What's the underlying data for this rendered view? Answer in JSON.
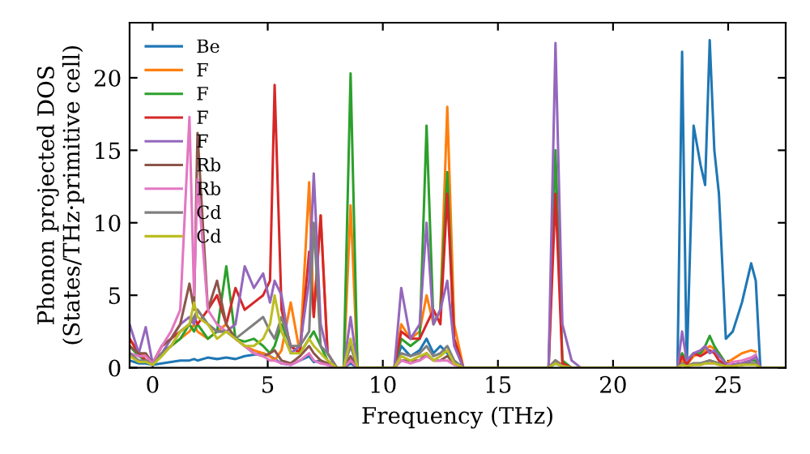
{
  "chart_data": {
    "type": "line",
    "xlabel": "Frequency (THz)",
    "ylabel": "Phonon projected DOS\n(States/THz·primitive cell)",
    "xlim": [
      -1,
      27.5
    ],
    "ylim": [
      0,
      23.8
    ],
    "xticks": [
      0,
      5,
      10,
      15,
      20,
      25
    ],
    "yticks": [
      0,
      5,
      10,
      15,
      20
    ],
    "grid": false,
    "legend": "top left",
    "x": [
      -1,
      -0.6,
      -0.3,
      0,
      0.4,
      0.8,
      1.2,
      1.6,
      1.8,
      1.95,
      2.4,
      2.8,
      3.2,
      3.6,
      4,
      4.4,
      4.8,
      5.1,
      5.3,
      5.6,
      6,
      6.4,
      6.8,
      7,
      7.3,
      7.6,
      8,
      8.3,
      8.6,
      8.9,
      9.5,
      10.5,
      10.8,
      11.2,
      11.6,
      11.9,
      12.2,
      12.5,
      12.8,
      13.1,
      13.5,
      17.2,
      17.5,
      17.8,
      18.2,
      18.6,
      22.8,
      23,
      23.2,
      23.5,
      23.8,
      24,
      24.2,
      24.4,
      24.6,
      24.9,
      25.2,
      25.6,
      26,
      26.2,
      26.4,
      27.5
    ],
    "series": [
      {
        "name": "Be",
        "color": "#1f77b4",
        "values": [
          0.5,
          0.3,
          0.3,
          0.2,
          0.3,
          0.4,
          0.5,
          0.5,
          0.6,
          0.5,
          0.7,
          0.6,
          0.7,
          0.6,
          0.8,
          0.9,
          1.0,
          0.8,
          0.6,
          0.3,
          0.2,
          0.5,
          0.8,
          0.4,
          0.5,
          0.2,
          0,
          0,
          0.3,
          0,
          0,
          0,
          1.5,
          0.8,
          1.2,
          2,
          1,
          1.5,
          1,
          0.3,
          0,
          0,
          0.3,
          0.1,
          0,
          0,
          0,
          21.8,
          0,
          16.7,
          14,
          12.6,
          22.6,
          15,
          12,
          2,
          2.5,
          4.5,
          7.2,
          6,
          0,
          0
        ]
      },
      {
        "name": "F",
        "color": "#ff7f0e",
        "values": [
          2,
          1,
          0.8,
          0.3,
          1,
          1.5,
          2,
          2.5,
          3,
          2.5,
          2,
          2.5,
          3,
          2,
          1.5,
          1.2,
          1,
          0.8,
          0.5,
          1.2,
          4.5,
          1,
          12.8,
          3.5,
          10.5,
          1,
          0,
          0,
          11.2,
          0,
          0,
          0,
          3,
          2,
          2.5,
          5,
          3,
          4,
          18,
          3,
          0,
          0,
          0.5,
          0.2,
          0,
          0,
          0,
          0.5,
          0.2,
          0.8,
          1,
          1.2,
          1.5,
          1.3,
          1,
          0.3,
          0.6,
          1.0,
          1.2,
          1.1,
          null,
          null
        ]
      },
      {
        "name": "F",
        "color": "#2ca02c",
        "values": [
          1.5,
          0.8,
          0.5,
          0.3,
          1,
          1.5,
          2,
          3,
          2.5,
          3,
          2,
          2.5,
          7,
          2,
          1.8,
          2,
          1.5,
          1,
          1.5,
          3,
          1.5,
          1,
          2,
          2.5,
          1.5,
          0.5,
          0,
          0,
          20.3,
          0,
          0,
          0,
          2,
          1.5,
          2,
          16.7,
          3,
          4,
          13.5,
          1.6,
          0,
          0,
          15,
          0.5,
          0,
          0,
          0,
          1,
          0.5,
          1,
          1,
          1.5,
          2.2,
          1.5,
          1,
          0.3,
          0.2,
          0.3,
          0.5,
          0.5,
          0,
          0
        ]
      },
      {
        "name": "F",
        "color": "#d62728",
        "values": [
          2,
          1,
          0.5,
          0.3,
          1.5,
          2,
          2.5,
          3,
          3.5,
          3,
          4,
          5,
          3,
          5.5,
          4,
          4.5,
          5,
          6,
          19.5,
          4,
          1.5,
          1,
          8,
          3.5,
          10.5,
          1,
          0,
          0,
          0.5,
          0,
          0,
          0,
          2.5,
          2,
          2,
          3,
          4,
          3,
          12,
          2,
          0,
          0,
          12,
          0.3,
          0,
          0,
          0,
          0.8,
          0.2,
          1,
          0.8,
          1,
          1.2,
          1,
          0.5,
          0.2,
          0.2,
          0.3,
          0.5,
          0.8,
          0,
          0
        ]
      },
      {
        "name": "F",
        "color": "#9467bd",
        "values": [
          3,
          1,
          2.8,
          0.3,
          1,
          2,
          3,
          3.5,
          3,
          4,
          3,
          2.5,
          2.5,
          3,
          7,
          5.5,
          6.5,
          4.5,
          6,
          5,
          1,
          1.5,
          6,
          13.4,
          3,
          1,
          0,
          0,
          3.5,
          0,
          0,
          0,
          5.5,
          2,
          3,
          10,
          3,
          4,
          6,
          1.5,
          0,
          0,
          22.4,
          3,
          0.5,
          0,
          0,
          2.5,
          0.5,
          1,
          1.2,
          1.5,
          1,
          1.2,
          0.8,
          0.3,
          0.2,
          0.3,
          0.5,
          0.8,
          0,
          0
        ]
      },
      {
        "name": "Rb",
        "color": "#8c564b",
        "values": [
          1.5,
          1,
          1,
          0.3,
          1.5,
          2,
          3,
          5.8,
          4,
          16.2,
          4,
          6,
          3,
          2,
          1.5,
          1,
          0.8,
          1,
          1.2,
          0.5,
          0.3,
          0.8,
          1.5,
          1,
          0.5,
          0.3,
          0,
          0,
          0.8,
          0,
          0,
          0,
          0.5,
          0.5,
          0.5,
          1,
          0.5,
          0.5,
          0.8,
          0.3,
          0,
          0,
          0.5,
          0.1,
          0,
          0,
          0,
          0.3,
          0.1,
          0.3,
          0.3,
          0.4,
          0.5,
          0.4,
          0.3,
          0.1,
          0.1,
          0.2,
          0.3,
          0.3,
          0,
          0
        ]
      },
      {
        "name": "Rb",
        "color": "#e377c2",
        "values": [
          1,
          0.8,
          0.8,
          0.3,
          1.5,
          2.5,
          4,
          17.3,
          5,
          13,
          4,
          3,
          2.5,
          2,
          1.5,
          1,
          0.8,
          0.5,
          0.5,
          0.3,
          0.2,
          0.5,
          1,
          0.5,
          0.3,
          0.2,
          0,
          0,
          0.5,
          0,
          0,
          0,
          0.5,
          0.3,
          0.5,
          0.8,
          0.5,
          0.5,
          0.5,
          0.2,
          0,
          0,
          0.5,
          0.1,
          0,
          0,
          0,
          0.2,
          0.1,
          0.2,
          0.2,
          0.3,
          0.3,
          0.3,
          0.2,
          0.1,
          0.4,
          0.5,
          0.7,
          0.9,
          null,
          null
        ]
      },
      {
        "name": "Cd",
        "color": "#7f7f7f",
        "values": [
          1,
          0.5,
          0.5,
          0.2,
          1,
          1.5,
          2.5,
          3,
          3.5,
          4,
          3,
          2.5,
          2.5,
          2,
          2.5,
          3,
          3.5,
          2.5,
          2,
          3.5,
          1.5,
          1.5,
          2.5,
          10,
          1.5,
          1,
          0,
          0,
          1.5,
          0,
          0,
          0,
          1,
          0.8,
          1,
          1.5,
          0.8,
          1,
          1.5,
          0.5,
          0,
          0,
          0.5,
          0.1,
          0,
          0,
          0,
          0.3,
          0.1,
          0.3,
          0.3,
          0.4,
          0.5,
          0.4,
          0.3,
          0.1,
          0.1,
          0.2,
          0.3,
          0.3,
          0,
          0
        ]
      },
      {
        "name": "Cd",
        "color": "#bcbd22",
        "values": [
          0.8,
          0.4,
          0.4,
          0.2,
          0.8,
          1.5,
          2.5,
          3,
          4.5,
          3.5,
          3,
          2,
          2.5,
          2,
          1.5,
          1.5,
          2,
          3,
          5,
          2.5,
          1,
          1,
          2,
          1.5,
          1,
          0.5,
          0,
          0,
          2,
          0,
          0,
          0,
          0.8,
          0.5,
          0.8,
          1,
          0.5,
          0.8,
          1.2,
          0.3,
          0,
          0,
          0.3,
          0.1,
          0,
          0,
          0,
          0.2,
          0.1,
          0.2,
          0.2,
          0.3,
          0.3,
          0.3,
          0.2,
          0.1,
          0.1,
          0.2,
          0.2,
          0.2,
          0,
          0
        ]
      }
    ]
  }
}
